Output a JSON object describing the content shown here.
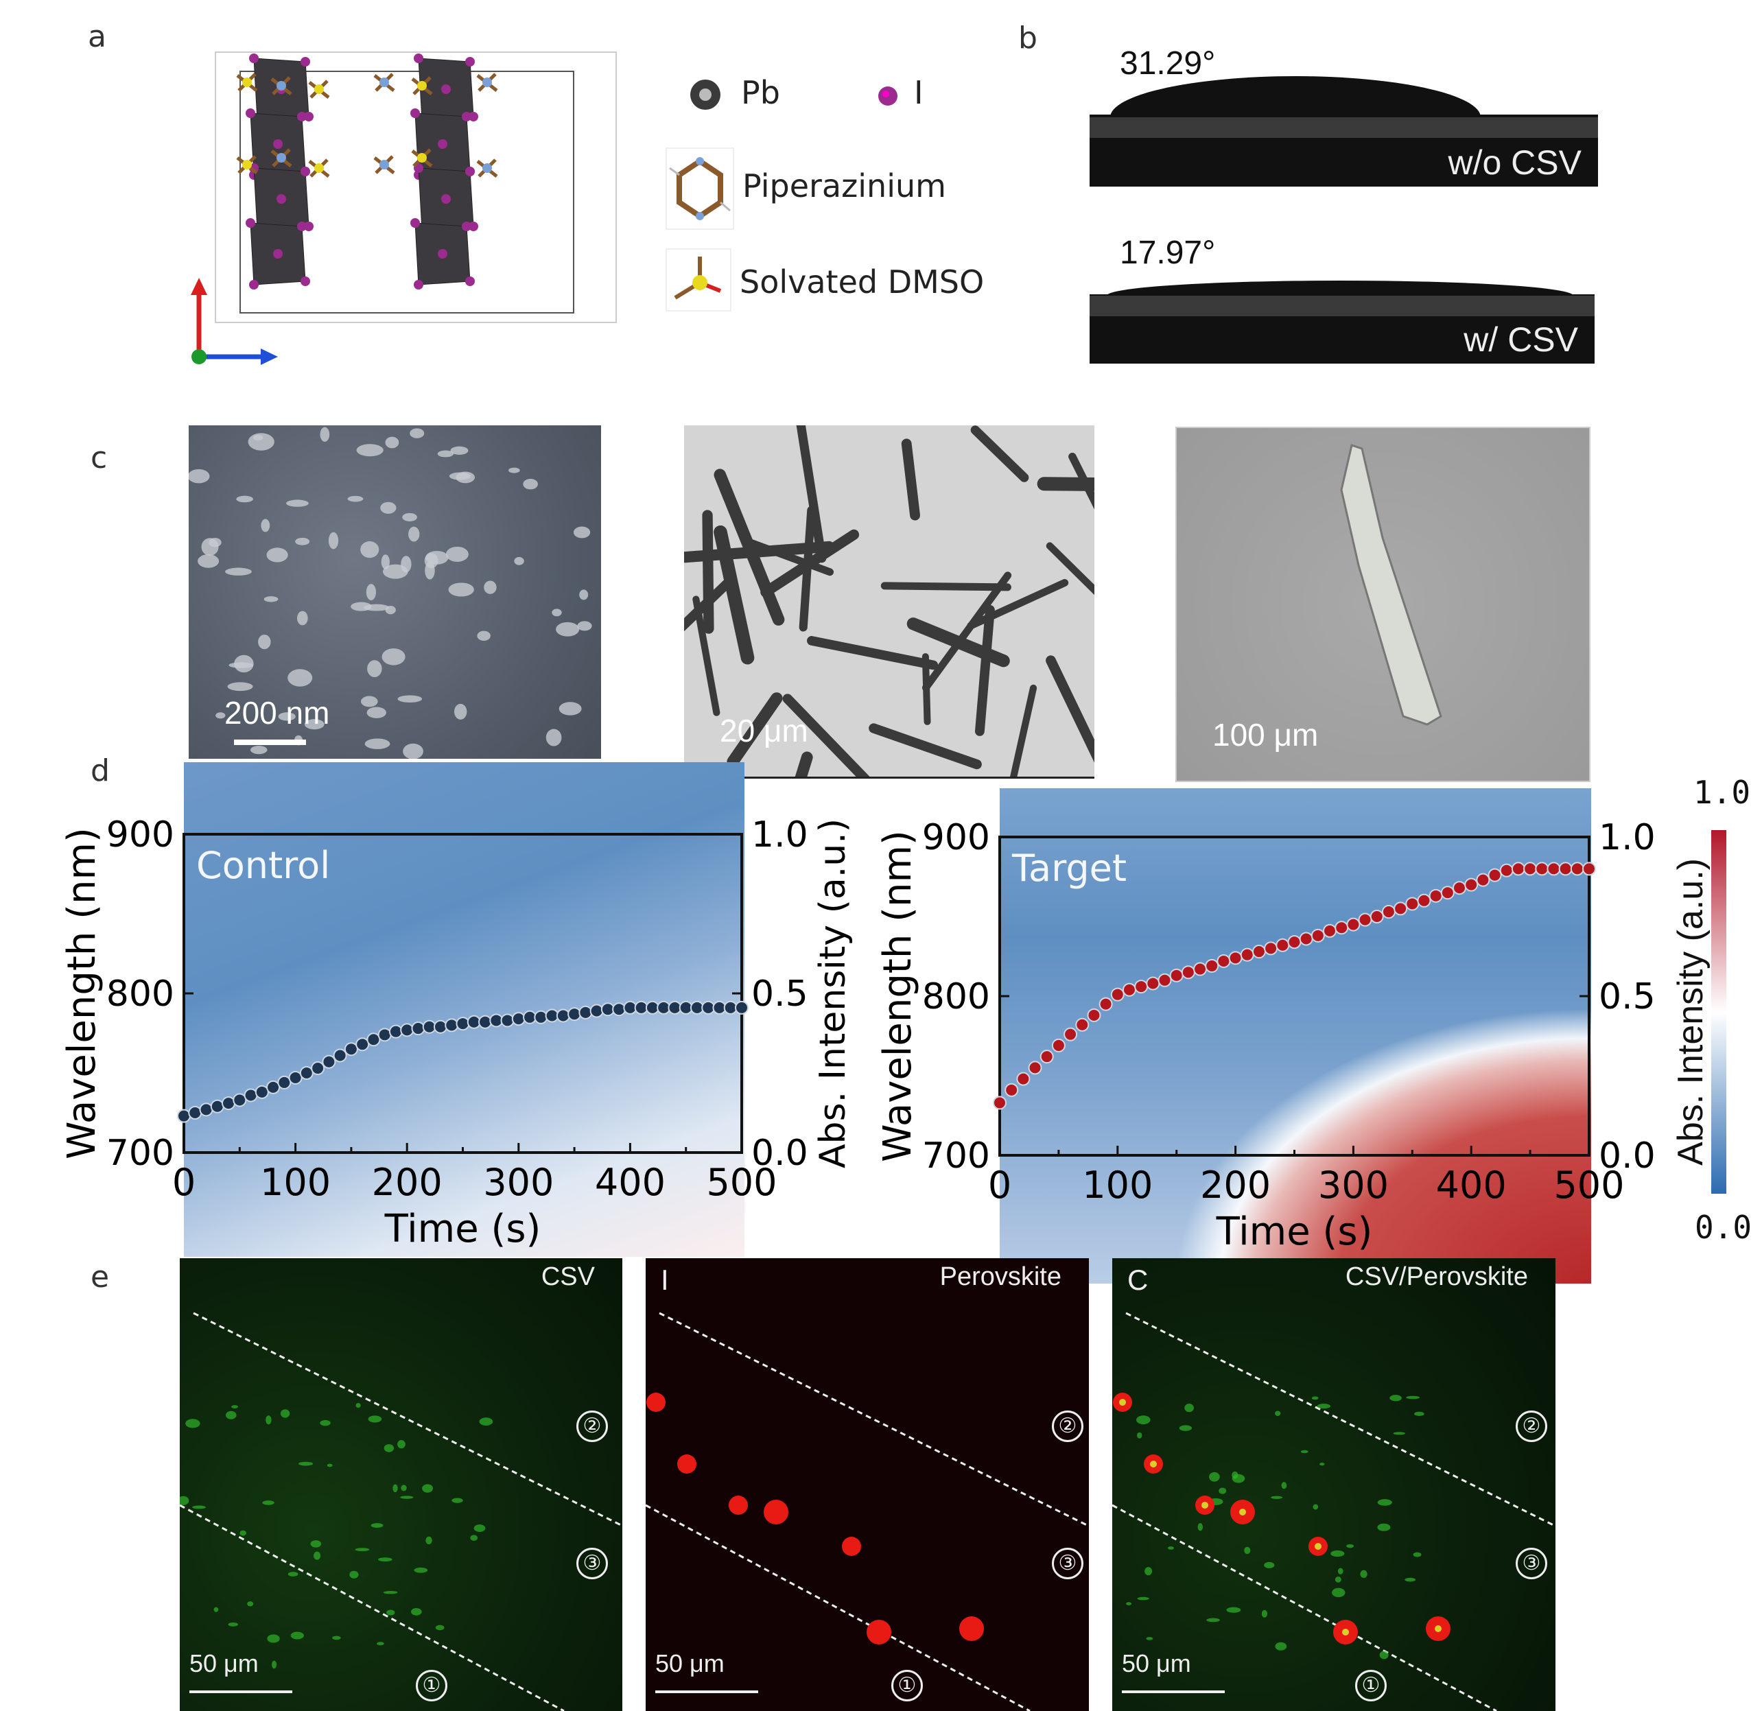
{
  "panel_labels": {
    "a": "a",
    "b": "b",
    "c": "c",
    "d": "d",
    "e": "e"
  },
  "panel_a": {
    "legend": [
      {
        "label": "Pb",
        "icon": "pb-atom-icon"
      },
      {
        "label": "I",
        "icon": "iodine-atom-icon"
      },
      {
        "label": "Piperazinium",
        "icon": "piperazinium-molecule-icon"
      },
      {
        "label": "Solvated DMSO",
        "icon": "dmso-molecule-icon"
      }
    ],
    "colors": {
      "octahedron": "#3d3a3f",
      "iodine": "#9c2b8f",
      "axis_up": "#d62020",
      "axis_right": "#1f4fd6",
      "axis_origin": "#1a9a2a"
    }
  },
  "panel_b": {
    "images": [
      {
        "angle": "31.29°",
        "caption": "w/o CSV"
      },
      {
        "angle": "17.97°",
        "caption": "w/ CSV"
      }
    ]
  },
  "panel_c": {
    "scale_bars": [
      "200 nm",
      "20 μm",
      "100 μm"
    ]
  },
  "chart_data": [
    {
      "type": "scatter",
      "title": "Control",
      "xlabel": "Time (s)",
      "ylabel": "Wavelength (nm)",
      "y2label": "Abs. Intensity (a.u.)",
      "xlim": [
        0,
        500
      ],
      "ylim": [
        700,
        900
      ],
      "y2lim": [
        0,
        1
      ],
      "xticks": [
        "0",
        "100",
        "200",
        "300",
        "400",
        "500"
      ],
      "yticks": [
        "700",
        "800",
        "900"
      ],
      "y2ticks": [
        "0.0",
        "0.5",
        "1.0"
      ],
      "x_step": 10,
      "values": [
        723,
        725,
        727,
        729,
        731,
        733,
        736,
        738,
        741,
        744,
        747,
        750,
        753,
        757,
        761,
        765,
        768,
        771,
        774,
        776,
        777,
        778,
        779,
        779,
        780,
        781,
        782,
        782,
        783,
        783,
        784,
        785,
        785,
        786,
        786,
        787,
        788,
        789,
        790,
        790,
        791,
        791,
        791,
        791,
        791,
        791,
        791,
        791,
        791,
        791,
        791
      ],
      "marker_color": "#1d3550"
    },
    {
      "type": "scatter",
      "title": "Target",
      "xlabel": "Time (s)",
      "ylabel": "Wavelength (nm)",
      "y2label": "Abs. Intensity (a.u.)",
      "xlim": [
        0,
        500
      ],
      "ylim": [
        700,
        900
      ],
      "y2lim": [
        0,
        1
      ],
      "xticks": [
        "0",
        "100",
        "200",
        "300",
        "400",
        "500"
      ],
      "yticks": [
        "700",
        "800",
        "900"
      ],
      "y2ticks": [
        "0.0",
        "0.5",
        "1.0"
      ],
      "x_step": 10,
      "values": [
        733,
        741,
        748,
        755,
        762,
        769,
        776,
        782,
        788,
        795,
        801,
        804,
        806,
        808,
        810,
        813,
        815,
        817,
        819,
        822,
        824,
        826,
        828,
        830,
        832,
        834,
        836,
        838,
        841,
        843,
        845,
        848,
        850,
        853,
        855,
        858,
        860,
        863,
        865,
        868,
        870,
        873,
        876,
        879,
        880,
        880,
        880,
        880,
        880,
        880,
        880
      ],
      "marker_color": "#b3171d",
      "colorbar": {
        "label": "Abs. Intensity (a.u.)",
        "max": "1.0",
        "min": "0.0",
        "colors": [
          "#2c6bb0",
          "#ffffff",
          "#b2182b"
        ]
      }
    }
  ],
  "panel_e": {
    "images": [
      {
        "title": "CSV",
        "corner": "",
        "scale": "50 μm"
      },
      {
        "title": "Perovskite",
        "corner": "I",
        "scale": "50 μm"
      },
      {
        "title": "CSV/Perovskite",
        "corner": "C",
        "scale": "50 μm"
      }
    ],
    "regions": [
      "①",
      "②",
      "③"
    ]
  }
}
